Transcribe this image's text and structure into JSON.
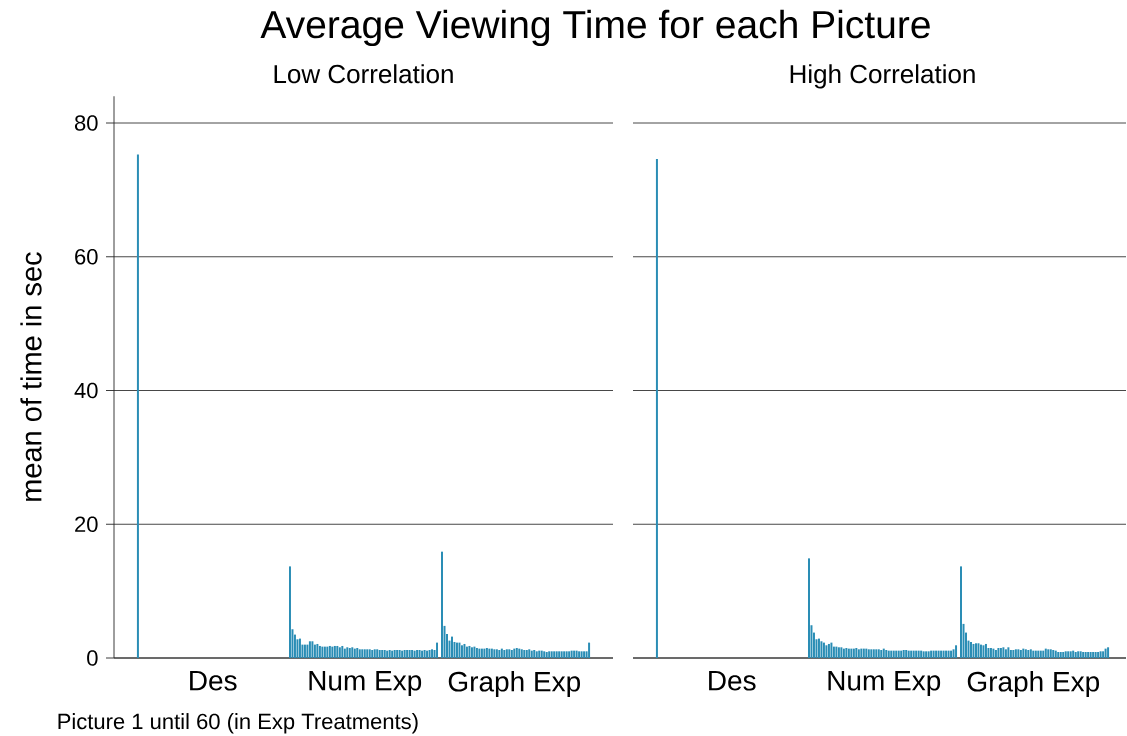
{
  "chart_data": [
    {
      "type": "bar",
      "title": "Average Viewing Time for each Picture",
      "subtitle": "Low Correlation",
      "ylabel": "mean of time in sec",
      "categories": [
        null,
        null,
        null,
        null,
        null,
        null,
        null,
        null,
        null,
        null,
        null,
        null,
        null,
        null,
        null,
        null,
        null,
        null,
        null,
        null,
        null,
        null,
        null,
        null,
        null,
        null,
        null,
        null,
        null,
        null,
        "Des",
        null,
        null,
        null,
        null,
        null,
        null,
        null,
        null,
        null,
        null,
        null,
        null,
        null,
        null,
        null,
        null,
        null,
        null,
        null,
        null,
        null,
        null,
        null,
        null,
        null,
        null,
        null,
        null,
        null,
        null,
        null,
        null,
        null,
        null,
        null,
        null,
        null,
        null,
        null,
        null,
        null,
        null,
        null,
        null,
        null,
        null,
        null,
        null,
        null,
        null,
        null,
        null,
        null,
        null,
        null,
        null,
        null,
        null,
        null,
        null,
        "Num Exp",
        null,
        null,
        null,
        null,
        null,
        null,
        null,
        null,
        null,
        null,
        null,
        null,
        null,
        null,
        null,
        null,
        null,
        null,
        null,
        null,
        null,
        null,
        null,
        null,
        null,
        null,
        null,
        null,
        null,
        null,
        null,
        null,
        null,
        null,
        null,
        null,
        null,
        null,
        null,
        null,
        null,
        null,
        null,
        null,
        null,
        null,
        null,
        null,
        null,
        null,
        null,
        null,
        null,
        null,
        null,
        null,
        null,
        null,
        null,
        "Graph Exp",
        null,
        null,
        null,
        null,
        null,
        null,
        null,
        null,
        null,
        null,
        null,
        null,
        null,
        null,
        null,
        null,
        null,
        null,
        null,
        null,
        null,
        null,
        null,
        null,
        null,
        null,
        null,
        null,
        null,
        null
      ],
      "values": [
        75.3,
        null,
        null,
        null,
        null,
        null,
        null,
        null,
        null,
        null,
        null,
        null,
        null,
        null,
        null,
        null,
        null,
        null,
        null,
        null,
        null,
        null,
        null,
        null,
        null,
        null,
        null,
        null,
        null,
        null,
        null,
        null,
        null,
        null,
        null,
        null,
        null,
        null,
        null,
        null,
        null,
        null,
        null,
        null,
        null,
        null,
        null,
        null,
        null,
        null,
        null,
        null,
        null,
        null,
        null,
        null,
        null,
        null,
        null,
        null,
        null,
        13.7,
        4.3,
        3.5,
        2.8,
        2.9,
        2.0,
        2.0,
        2.0,
        2.5,
        2.5,
        2.0,
        2.1,
        1.8,
        1.7,
        1.7,
        1.7,
        1.8,
        1.7,
        1.8,
        1.8,
        1.6,
        1.8,
        1.4,
        1.6,
        1.5,
        1.6,
        1.4,
        1.5,
        1.3,
        1.3,
        1.3,
        1.3,
        1.3,
        1.2,
        1.3,
        1.3,
        1.2,
        1.2,
        1.2,
        1.1,
        1.2,
        1.1,
        1.2,
        1.2,
        1.2,
        1.1,
        1.2,
        1.2,
        1.2,
        1.2,
        1.1,
        1.2,
        1.2,
        1.1,
        1.2,
        1.1,
        1.2,
        1.3,
        1.2,
        2.3,
        null,
        15.9,
        4.8,
        3.6,
        2.6,
        3.2,
        2.4,
        2.3,
        2.3,
        1.9,
        2.1,
        1.7,
        1.8,
        1.6,
        1.7,
        1.5,
        1.4,
        1.4,
        1.4,
        1.5,
        1.4,
        1.4,
        1.3,
        1.3,
        1.2,
        1.4,
        1.2,
        1.3,
        1.3,
        1.2,
        1.4,
        1.5,
        1.4,
        1.3,
        1.2,
        1.2,
        1.3,
        1.1,
        1.2,
        1.0,
        1.1,
        1.1,
        1.0,
        0.9,
        1.0,
        1.0,
        1.0,
        1.0,
        1.0,
        1.0,
        1.0,
        1.0,
        1.0,
        1.1,
        1.1,
        1.1,
        1.0,
        1.0,
        1.0,
        1.0,
        2.3
      ],
      "color": "#2a8db5",
      "ylim": [
        0,
        84
      ],
      "yticks": [
        0,
        20,
        40,
        60,
        80
      ],
      "grid": "y",
      "annotations": [
        "Picture 1 until 60 (in Exp Treatments)"
      ]
    },
    {
      "type": "bar",
      "subtitle": "High Correlation",
      "categories": [
        null,
        null,
        null,
        null,
        null,
        null,
        null,
        null,
        null,
        null,
        null,
        null,
        null,
        null,
        null,
        null,
        null,
        null,
        null,
        null,
        null,
        null,
        null,
        null,
        null,
        null,
        null,
        null,
        null,
        null,
        "Des",
        null,
        null,
        null,
        null,
        null,
        null,
        null,
        null,
        null,
        null,
        null,
        null,
        null,
        null,
        null,
        null,
        null,
        null,
        null,
        null,
        null,
        null,
        null,
        null,
        null,
        null,
        null,
        null,
        null,
        null,
        null,
        null,
        null,
        null,
        null,
        null,
        null,
        null,
        null,
        null,
        null,
        null,
        null,
        null,
        null,
        null,
        null,
        null,
        null,
        null,
        null,
        null,
        null,
        null,
        null,
        null,
        null,
        null,
        null,
        null,
        "Num Exp",
        null,
        null,
        null,
        null,
        null,
        null,
        null,
        null,
        null,
        null,
        null,
        null,
        null,
        null,
        null,
        null,
        null,
        null,
        null,
        null,
        null,
        null,
        null,
        null,
        null,
        null,
        null,
        null,
        null,
        null,
        null,
        null,
        null,
        null,
        null,
        null,
        null,
        null,
        null,
        null,
        null,
        null,
        null,
        null,
        null,
        null,
        null,
        null,
        null,
        null,
        null,
        null,
        null,
        null,
        null,
        null,
        null,
        null,
        null,
        "Graph Exp",
        null,
        null,
        null,
        null,
        null,
        null,
        null,
        null,
        null,
        null,
        null,
        null,
        null,
        null,
        null,
        null,
        null,
        null,
        null,
        null,
        null,
        null,
        null,
        null,
        null,
        null,
        null,
        null,
        null,
        null
      ],
      "values": [
        74.6,
        null,
        null,
        null,
        null,
        null,
        null,
        null,
        null,
        null,
        null,
        null,
        null,
        null,
        null,
        null,
        null,
        null,
        null,
        null,
        null,
        null,
        null,
        null,
        null,
        null,
        null,
        null,
        null,
        null,
        null,
        null,
        null,
        null,
        null,
        null,
        null,
        null,
        null,
        null,
        null,
        null,
        null,
        null,
        null,
        null,
        null,
        null,
        null,
        null,
        null,
        null,
        null,
        null,
        null,
        null,
        null,
        null,
        null,
        null,
        null,
        14.9,
        4.9,
        3.8,
        2.8,
        2.9,
        2.5,
        2.3,
        1.9,
        2.1,
        2.3,
        1.7,
        1.7,
        1.6,
        1.6,
        1.4,
        1.5,
        1.4,
        1.4,
        1.4,
        1.5,
        1.3,
        1.4,
        1.4,
        1.4,
        1.3,
        1.3,
        1.3,
        1.3,
        1.3,
        1.2,
        1.4,
        1.2,
        1.1,
        1.1,
        1.1,
        1.1,
        1.1,
        1.1,
        1.2,
        1.2,
        1.1,
        1.1,
        1.1,
        1.1,
        1.1,
        1.1,
        1.0,
        1.0,
        1.0,
        1.1,
        1.1,
        1.1,
        1.1,
        1.1,
        1.1,
        1.1,
        1.1,
        1.1,
        1.3,
        1.9,
        null,
        13.7,
        5.1,
        3.8,
        2.6,
        2.4,
        2.1,
        2.2,
        2.2,
        2.0,
        1.9,
        2.1,
        1.5,
        1.5,
        1.4,
        1.2,
        1.5,
        1.5,
        1.6,
        1.3,
        1.6,
        1.2,
        1.2,
        1.3,
        1.3,
        1.2,
        1.4,
        1.3,
        1.2,
        1.3,
        1.1,
        1.1,
        1.1,
        1.1,
        1.1,
        1.4,
        1.3,
        1.3,
        1.2,
        1.1,
        0.9,
        0.9,
        0.9,
        1.0,
        1.0,
        1.0,
        1.1,
        0.9,
        1.0,
        1.0,
        0.9,
        0.9,
        0.9,
        0.9,
        0.9,
        0.9,
        0.9,
        1.0,
        1.0,
        1.4,
        1.6
      ],
      "color": "#2a8db5",
      "ylim": [
        0,
        80
      ],
      "yticks": [
        0,
        20,
        40,
        60,
        80
      ],
      "grid": "y",
      "tick_labels": "x"
    }
  ]
}
